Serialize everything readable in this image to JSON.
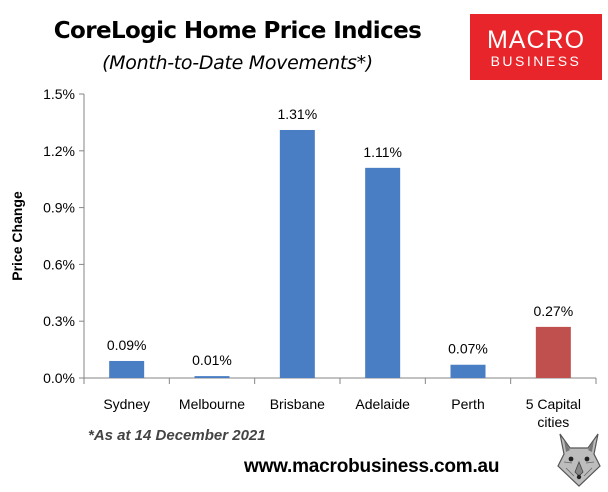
{
  "header": {
    "title": "CoreLogic Home Price Indices",
    "subtitle": "(Month-to-Date Movements*)"
  },
  "logo": {
    "line1": "MACRO",
    "line2": "BUSINESS",
    "color": "#e8252a"
  },
  "footnote": "*As at 14 December 2021",
  "website": "www.macrobusiness.com.au",
  "colors": {
    "bar": "#4a7ec4",
    "highlight": "#c0504d",
    "grid": "#d9d9d9"
  },
  "chart_data": {
    "type": "bar",
    "title": "CoreLogic Home Price Indices",
    "subtitle": "(Month-to-Date Movements*)",
    "xlabel": "",
    "ylabel": "Price Change",
    "categories": [
      "Sydney",
      "Melbourne",
      "Brisbane",
      "Adelaide",
      "Perth",
      "5 Capital cities"
    ],
    "category_lines": [
      [
        "Sydney"
      ],
      [
        "Melbourne"
      ],
      [
        "Brisbane"
      ],
      [
        "Adelaide"
      ],
      [
        "Perth"
      ],
      [
        "5 Capital",
        "cities"
      ]
    ],
    "values": [
      0.09,
      0.01,
      1.31,
      1.11,
      0.07,
      0.27
    ],
    "data_labels": [
      "0.09%",
      "0.01%",
      "1.31%",
      "1.11%",
      "0.07%",
      "0.27%"
    ],
    "highlight_index": 5,
    "ylim": [
      0,
      1.5
    ],
    "yticks": [
      0,
      0.3,
      0.6,
      0.9,
      1.2,
      1.5
    ],
    "ytick_labels": [
      "0.0%",
      "0.3%",
      "0.6%",
      "0.9%",
      "1.2%",
      "1.5%"
    ],
    "grid": false,
    "legend": "none"
  }
}
